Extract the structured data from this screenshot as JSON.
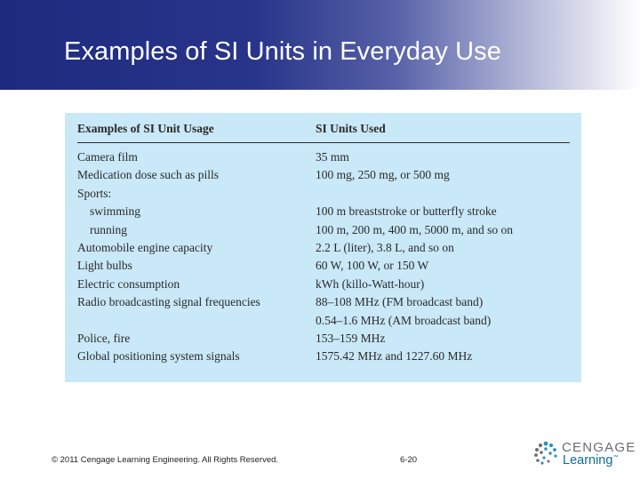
{
  "slide": {
    "title": "Examples of SI Units in Everyday Use"
  },
  "table": {
    "headers": [
      "Examples of SI Unit Usage",
      "SI Units Used"
    ],
    "rows": [
      {
        "usage": "Camera film",
        "units": "35 mm",
        "indent": false
      },
      {
        "usage": "Medication dose such as pills",
        "units": "100 mg, 250 mg, or 500 mg",
        "indent": false
      },
      {
        "usage": "Sports:",
        "units": "",
        "indent": false
      },
      {
        "usage": "swimming",
        "units": "100 m breaststroke or butterfly stroke",
        "indent": true
      },
      {
        "usage": "running",
        "units": "100 m, 200 m, 400 m, 5000 m, and so on",
        "indent": true
      },
      {
        "usage": "Automobile engine capacity",
        "units": "2.2 L (liter), 3.8 L, and so on",
        "indent": false
      },
      {
        "usage": "Light bulbs",
        "units": "60 W, 100 W, or 150 W",
        "indent": false
      },
      {
        "usage": "Electric consumption",
        "units": "kWh (killo-Watt-hour)",
        "indent": false
      },
      {
        "usage": "Radio broadcasting signal frequencies",
        "units": "88–108 MHz (FM broadcast band)",
        "indent": false
      },
      {
        "usage": "",
        "units": "0.54–1.6 MHz (AM broadcast band)",
        "indent": false
      },
      {
        "usage": "Police, fire",
        "units": "153–159 MHz",
        "indent": false
      },
      {
        "usage": "Global positioning system signals",
        "units": "1575.42 MHz and 1227.60 MHz",
        "indent": false
      }
    ]
  },
  "footer": {
    "copyright": "© 2011 Cengage Learning Engineering. All Rights Reserved.",
    "page_number": "6-20"
  },
  "logo": {
    "icon": "cengage-dots-icon",
    "line1": "CENGAGE",
    "line2": "Learning",
    "trademark": "™"
  },
  "colors": {
    "header_dark": "#1e2a7e",
    "table_bg": "#c9e8f8",
    "logo_gray": "#6a6d72",
    "logo_blue": "#0f6e99"
  }
}
